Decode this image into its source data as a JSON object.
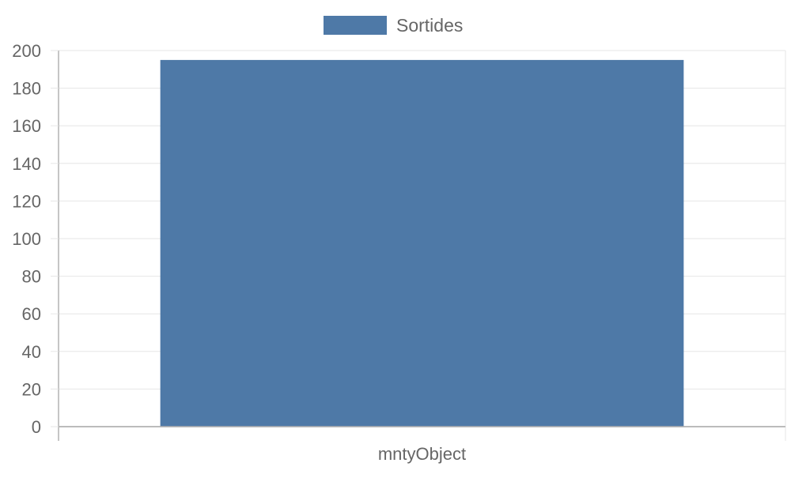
{
  "chart_data": {
    "type": "bar",
    "title": "",
    "xlabel": "",
    "ylabel": "",
    "categories": [
      "mntyObject"
    ],
    "series": [
      {
        "name": "Sortides",
        "values": [
          195
        ],
        "color": "#4e79a7"
      }
    ],
    "ylim": [
      0,
      200
    ],
    "y_ticks": [
      0,
      20,
      40,
      60,
      80,
      100,
      120,
      140,
      160,
      180,
      200
    ],
    "grid": true,
    "legend_position": "top"
  },
  "colors": {
    "grid": "#e6e6e6",
    "axis": "#b3b3b3",
    "text": "#666666"
  }
}
